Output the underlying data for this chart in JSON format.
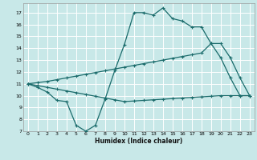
{
  "xlabel": "Humidex (Indice chaleur)",
  "bg_color": "#c8e8e8",
  "grid_color": "#ffffff",
  "line_color": "#1a6b6b",
  "xlim": [
    -0.5,
    23.5
  ],
  "ylim": [
    7,
    17.8
  ],
  "xticks": [
    0,
    1,
    2,
    3,
    4,
    5,
    6,
    7,
    8,
    9,
    10,
    11,
    12,
    13,
    14,
    15,
    16,
    17,
    18,
    19,
    20,
    21,
    22,
    23
  ],
  "yticks": [
    7,
    8,
    9,
    10,
    11,
    12,
    13,
    14,
    15,
    16,
    17
  ],
  "line1_x": [
    0,
    1,
    2,
    3,
    4,
    5,
    6,
    7,
    8,
    9,
    10,
    11,
    12,
    13,
    14,
    15,
    16,
    17,
    18,
    19,
    20,
    21,
    22,
    23
  ],
  "line1_y": [
    11.0,
    10.7,
    10.3,
    9.6,
    9.5,
    7.5,
    7.0,
    7.5,
    9.7,
    12.1,
    14.3,
    17.0,
    17.0,
    16.8,
    17.4,
    16.5,
    16.3,
    15.8,
    15.8,
    14.4,
    13.2,
    11.5,
    10.0,
    10.0
  ],
  "line2_x": [
    0,
    1,
    2,
    3,
    4,
    5,
    6,
    7,
    8,
    9,
    10,
    11,
    12,
    13,
    14,
    15,
    16,
    17,
    18,
    19,
    20,
    21,
    22,
    23
  ],
  "line2_y": [
    11.0,
    10.85,
    10.7,
    10.55,
    10.4,
    10.25,
    10.1,
    9.95,
    9.8,
    9.65,
    9.5,
    9.55,
    9.6,
    9.65,
    9.7,
    9.75,
    9.8,
    9.85,
    9.9,
    9.95,
    10.0,
    10.0,
    10.0,
    10.0
  ],
  "line3_x": [
    0,
    1,
    2,
    3,
    4,
    5,
    6,
    7,
    8,
    9,
    10,
    11,
    12,
    13,
    14,
    15,
    16,
    17,
    18,
    19,
    20,
    21,
    22,
    23
  ],
  "line3_y": [
    11.0,
    11.1,
    11.2,
    11.35,
    11.5,
    11.65,
    11.8,
    11.95,
    12.1,
    12.25,
    12.4,
    12.55,
    12.7,
    12.85,
    13.0,
    13.15,
    13.3,
    13.45,
    13.6,
    14.4,
    14.4,
    13.2,
    11.5,
    10.0
  ]
}
